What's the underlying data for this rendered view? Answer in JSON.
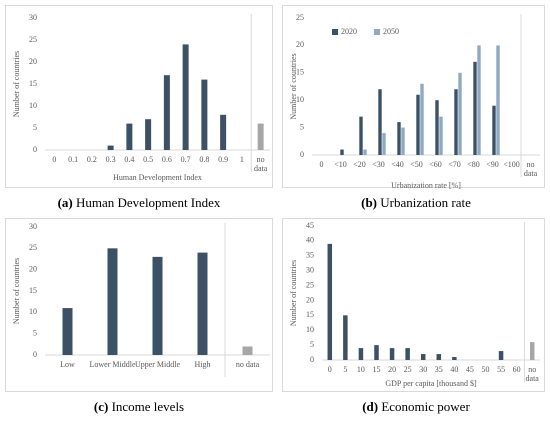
{
  "chart_data": [
    {
      "type": "bar",
      "caption_label": "(a)",
      "caption": "Human Development Index",
      "ylabel": "Number of countries",
      "xlabel": "Human Development Index",
      "categories": [
        "0",
        "0.1",
        "0.2",
        "0.3",
        "0.4",
        "0.5",
        "0.6",
        "0.7",
        "0.8",
        "0.9",
        "1",
        "no data"
      ],
      "values": [
        0,
        0,
        0,
        1,
        6,
        7,
        17,
        24,
        16,
        8,
        0,
        6
      ],
      "colors": [
        "#3d5166",
        "#3d5166",
        "#3d5166",
        "#3d5166",
        "#3d5166",
        "#3d5166",
        "#3d5166",
        "#3d5166",
        "#3d5166",
        "#3d5166",
        "#3d5166",
        "#a6a6a6"
      ],
      "ylim": [
        0,
        30
      ],
      "yticks": [
        0,
        5,
        10,
        15,
        20,
        25,
        30
      ],
      "grid": false
    },
    {
      "type": "grouped_bar",
      "caption_label": "(b)",
      "caption": "Urbanization rate",
      "ylabel": "Number of countries",
      "xlabel": "Urbanization rate [%]",
      "categories": [
        "0",
        "<10",
        "<20",
        "<30",
        "<40",
        "<50",
        "<60",
        "<70",
        "<80",
        "<90",
        "<100",
        "no data"
      ],
      "series": [
        {
          "name": "2020",
          "color": "#3d5166",
          "values": [
            0,
            1,
            7,
            12,
            6,
            11,
            10,
            12,
            17,
            9,
            0,
            0
          ]
        },
        {
          "name": "2050",
          "color": "#8ea9c1",
          "values": [
            0,
            0,
            1,
            4,
            5,
            13,
            7,
            15,
            20,
            20,
            0,
            0
          ]
        }
      ],
      "ylim": [
        0,
        25
      ],
      "yticks": [
        0,
        5,
        10,
        15,
        20,
        25
      ],
      "grid": false,
      "legend": "upper left"
    },
    {
      "type": "bar",
      "caption_label": "(c)",
      "caption": "Income levels",
      "ylabel": "Number of countries",
      "categories": [
        "Low",
        "Lower Middle",
        "Upper Middle",
        "High",
        "no data"
      ],
      "values": [
        11,
        25,
        23,
        24,
        2
      ],
      "colors": [
        "#3d5166",
        "#3d5166",
        "#3d5166",
        "#3d5166",
        "#a6a6a6"
      ],
      "ylim": [
        0,
        30
      ],
      "yticks": [
        0,
        5,
        10,
        15,
        20,
        25,
        30
      ],
      "grid": false
    },
    {
      "type": "bar",
      "caption_label": "(d)",
      "caption": "Economic power",
      "ylabel": "Number of countries",
      "xlabel": "GDP per capita [thousand $]",
      "categories": [
        "0",
        "5",
        "10",
        "15",
        "20",
        "25",
        "30",
        "35",
        "40",
        "45",
        "50",
        "55",
        "60",
        "no data"
      ],
      "values": [
        39,
        15,
        4,
        5,
        4,
        4,
        2,
        2,
        1,
        0,
        0,
        3,
        0,
        6
      ],
      "colors": [
        "#3d5166",
        "#3d5166",
        "#3d5166",
        "#3d5166",
        "#3d5166",
        "#3d5166",
        "#3d5166",
        "#3d5166",
        "#3d5166",
        "#3d5166",
        "#3d5166",
        "#3d5166",
        "#3d5166",
        "#a6a6a6"
      ],
      "ylim": [
        0,
        45
      ],
      "yticks": [
        0,
        5,
        10,
        15,
        20,
        25,
        30,
        35,
        40,
        45
      ],
      "grid": false
    }
  ]
}
